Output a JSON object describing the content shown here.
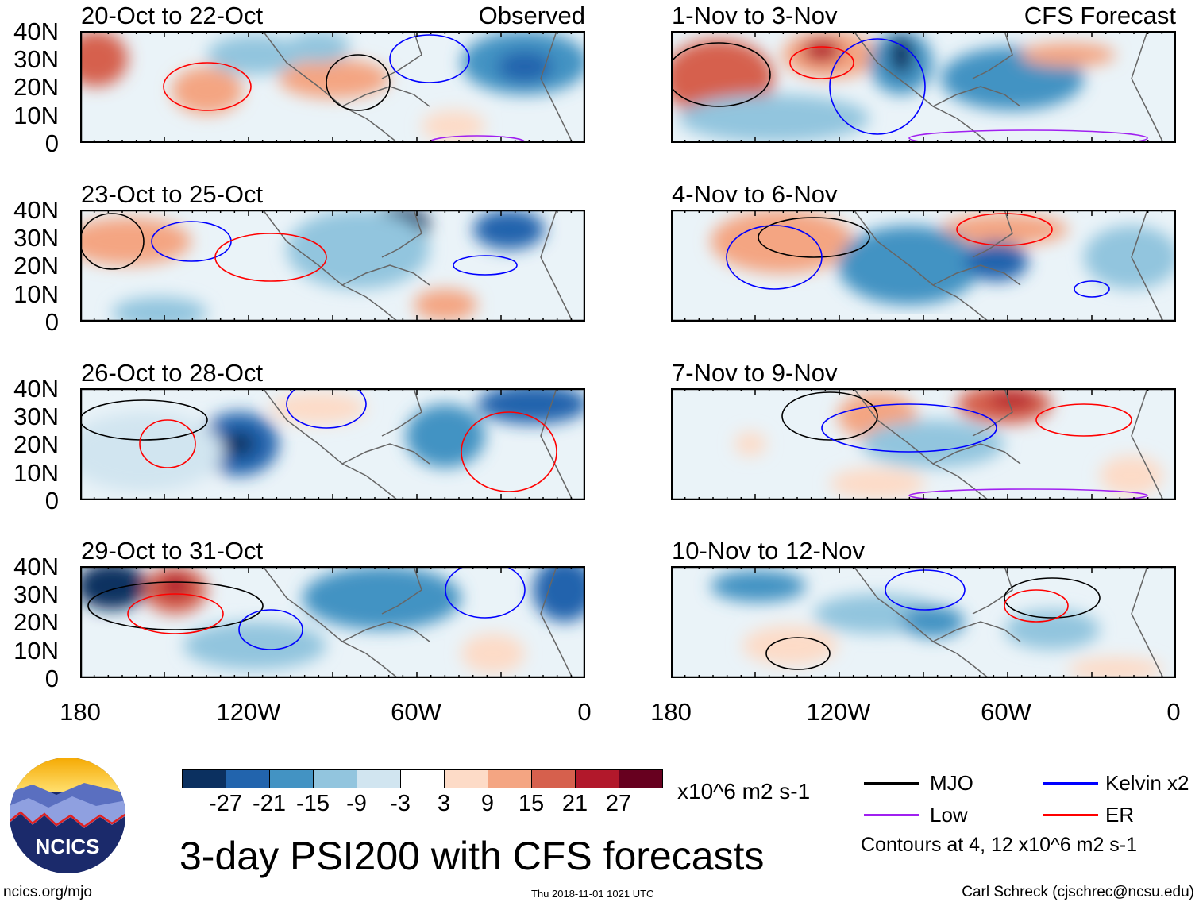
{
  "panels": [
    {
      "title": "20-Oct to 22-Oct",
      "tag": "Observed",
      "source": "observed"
    },
    {
      "title": "1-Nov to 3-Nov",
      "tag": "CFS Forecast",
      "source": "forecast"
    },
    {
      "title": "23-Oct to 25-Oct",
      "source": "observed"
    },
    {
      "title": "4-Nov to 6-Nov",
      "source": "forecast"
    },
    {
      "title": "26-Oct to 28-Oct",
      "source": "observed"
    },
    {
      "title": "7-Nov to 9-Nov",
      "source": "forecast"
    },
    {
      "title": "29-Oct to 31-Oct",
      "source": "observed"
    },
    {
      "title": "10-Nov to 12-Nov",
      "source": "forecast"
    }
  ],
  "lat_labels": [
    "40N",
    "30N",
    "20N",
    "10N",
    "0"
  ],
  "lon_labels": [
    "180",
    "120W",
    "60W",
    "0"
  ],
  "colorbar": {
    "labels": [
      "-27",
      "-21",
      "-15",
      "-9",
      "-3",
      "3",
      "9",
      "15",
      "21",
      "27"
    ],
    "colors": [
      "#0b3060",
      "#2264ad",
      "#4393c3",
      "#92c5de",
      "#d1e5f0",
      "#ffffff",
      "#fddbc7",
      "#f4a582",
      "#d6604d",
      "#b2182b",
      "#67001f"
    ],
    "units": "x10^6 m2 s-1"
  },
  "title": "3-day PSI200 with CFS forecasts",
  "legend": {
    "items": [
      {
        "label": "MJO",
        "color": "#000000"
      },
      {
        "label": "Kelvin x2",
        "color": "#0000ff"
      },
      {
        "label": "Low",
        "color": "#a020f0"
      },
      {
        "label": "ER",
        "color": "#ff0000"
      }
    ],
    "note": "Contours at 4, 12 x10^6 m2 s-1"
  },
  "footer": {
    "url": "ncics.org/mjo",
    "timestamp": "Thu 2018-11-01 1021 UTC",
    "credit": "Carl Schreck (cjschrec@ncsu.edu)"
  },
  "logo_text": "NCICS"
}
